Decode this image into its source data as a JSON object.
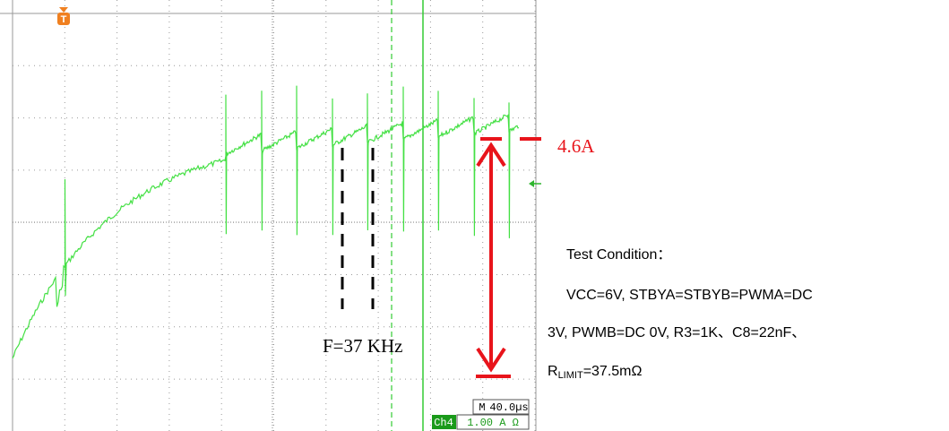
{
  "trigger_marker": "T",
  "annotations": {
    "current": "4.6A",
    "frequency": "F=37 KHz"
  },
  "test_condition": {
    "title": "Test Condition：",
    "lines": [
      "VCC=6V, STBYA=STBYB=PWMA=DC",
      "3V, PWMB=DC 0V, R3=1K、C8=22nF、"
    ],
    "r_limit": {
      "symbol": "R",
      "subscript": "LIMIT",
      "value": "=37.5mΩ"
    }
  },
  "scope": {
    "timebase_prefix": "M",
    "timebase": "40.0µs",
    "channel": "Ch4",
    "scale": "1.00 A Ω"
  }
}
